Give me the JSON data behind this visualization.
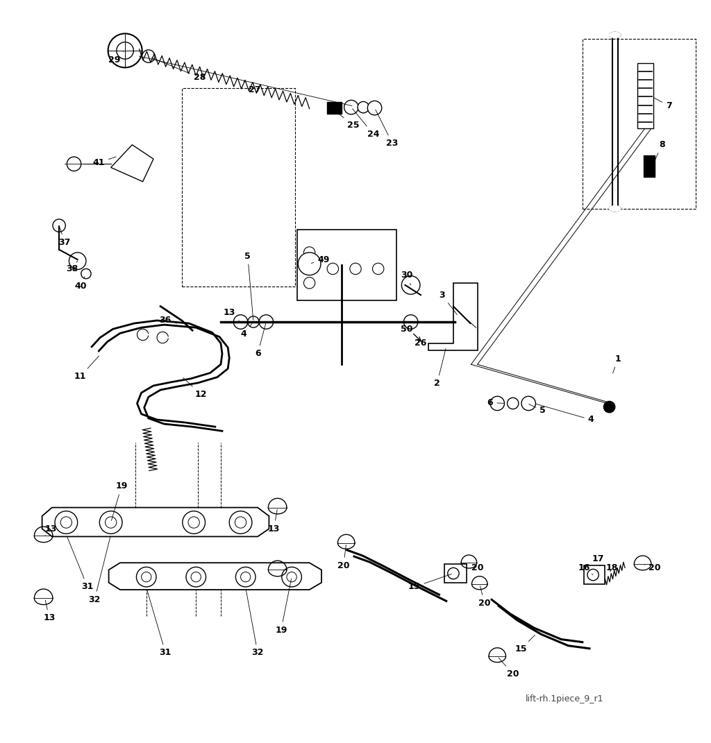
{
  "title": "",
  "watermark": "lift-rh.1piece_9_r1",
  "background_color": "#ffffff",
  "line_color": "#000000"
}
